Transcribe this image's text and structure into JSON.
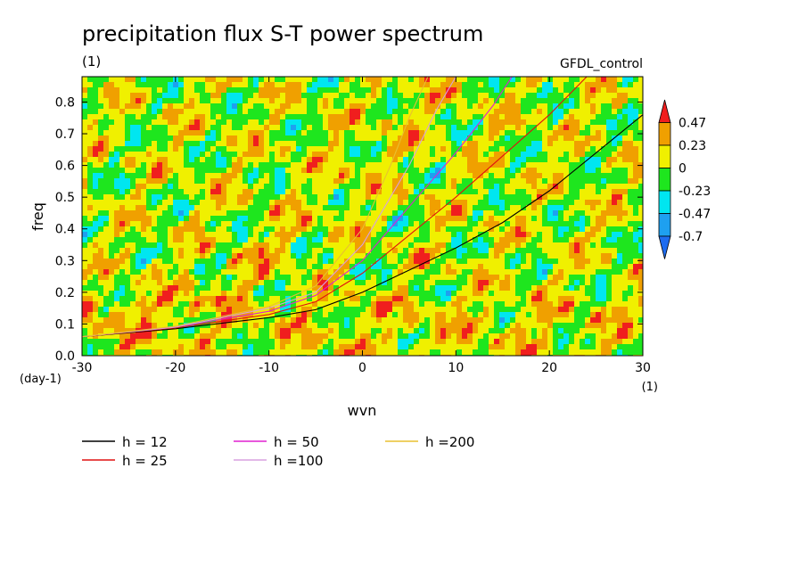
{
  "chart_data": {
    "type": "heatmap",
    "title": "precipitation flux S-T power spectrum",
    "subtitle": "(1)",
    "run_label": "GFDL_control",
    "xlabel": "wvn",
    "x_unit": "(1)",
    "ylabel": "freq",
    "y_unit": "(day-1)",
    "xlim": [
      -30,
      30
    ],
    "ylim": [
      0,
      0.88
    ],
    "x_ticks": [
      -30,
      -20,
      -10,
      0,
      10,
      20,
      30
    ],
    "y_ticks": [
      0.0,
      0.1,
      0.2,
      0.3,
      0.4,
      0.5,
      0.6,
      0.7,
      0.8
    ],
    "x_tick_labels": [
      "-30",
      "-20",
      "-10",
      "0",
      "10",
      "20",
      "30"
    ],
    "y_tick_labels": [
      "0.0",
      "0.1",
      "0.2",
      "0.3",
      "0.4",
      "0.5",
      "0.6",
      "0.7",
      "0.8"
    ],
    "colorbar": {
      "levels": [
        -0.7,
        -0.47,
        -0.23,
        0,
        0.23,
        0.47
      ],
      "labels": [
        "0.47",
        "0.23",
        "0",
        "-0.23",
        "-0.47",
        "-0.7"
      ],
      "colors": [
        "#1e6cf0",
        "#1ea0f0",
        "#00e6f0",
        "#1ee61e",
        "#f0f000",
        "#f0a000",
        "#f01e1e"
      ]
    },
    "dispersion_curves": [
      {
        "name": "h = 12",
        "color": "#000000",
        "points": [
          [
            -30,
            0.06
          ],
          [
            -20,
            0.085
          ],
          [
            -10,
            0.12
          ],
          [
            -5,
            0.145
          ],
          [
            0,
            0.2
          ],
          [
            5,
            0.27
          ],
          [
            10,
            0.34
          ],
          [
            15,
            0.42
          ],
          [
            20,
            0.52
          ],
          [
            25,
            0.64
          ],
          [
            30,
            0.76
          ]
        ]
      },
      {
        "name": "h = 25",
        "color": "#e01010",
        "points": [
          [
            -30,
            0.06
          ],
          [
            -20,
            0.088
          ],
          [
            -10,
            0.13
          ],
          [
            -5,
            0.17
          ],
          [
            0,
            0.26
          ],
          [
            5,
            0.38
          ],
          [
            10,
            0.5
          ],
          [
            15,
            0.63
          ],
          [
            20,
            0.76
          ],
          [
            24,
            0.88
          ]
        ]
      },
      {
        "name": "h = 50",
        "color": "#e020d0",
        "points": [
          [
            -30,
            0.06
          ],
          [
            -20,
            0.09
          ],
          [
            -10,
            0.14
          ],
          [
            -5,
            0.19
          ],
          [
            0,
            0.3
          ],
          [
            5,
            0.47
          ],
          [
            10,
            0.64
          ],
          [
            14,
            0.79
          ],
          [
            16,
            0.88
          ]
        ]
      },
      {
        "name": "h =100",
        "color": "#d8a0e0",
        "points": [
          [
            -30,
            0.06
          ],
          [
            -20,
            0.09
          ],
          [
            -10,
            0.15
          ],
          [
            -5,
            0.2
          ],
          [
            0,
            0.35
          ],
          [
            5,
            0.6
          ],
          [
            8,
            0.78
          ],
          [
            10,
            0.88
          ]
        ]
      },
      {
        "name": "h =200",
        "color": "#e8c030",
        "points": [
          [
            -30,
            0.06
          ],
          [
            -20,
            0.093
          ],
          [
            -10,
            0.155
          ],
          [
            -5,
            0.22
          ],
          [
            0,
            0.4
          ],
          [
            3,
            0.6
          ],
          [
            5,
            0.75
          ],
          [
            7,
            0.88
          ]
        ]
      }
    ]
  }
}
